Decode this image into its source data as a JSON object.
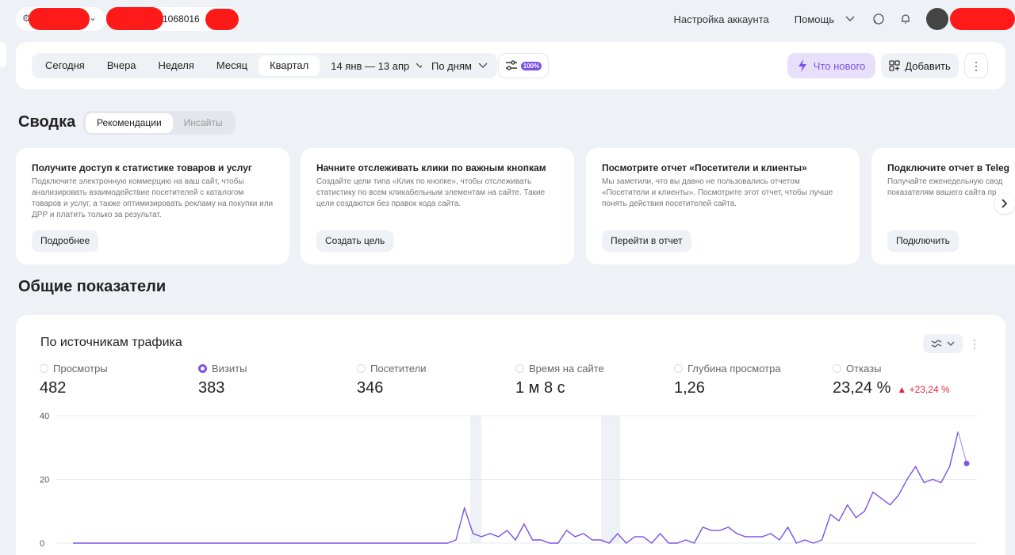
{
  "header": {
    "counter_id": "1068016",
    "account_settings": "Настройка аккаунта",
    "help": "Помощь"
  },
  "filters": {
    "periods": [
      "Сегодня",
      "Вчера",
      "Неделя",
      "Месяц",
      "Квартал"
    ],
    "active_period": "Квартал",
    "date_range": "14 янв — 13 апр",
    "grouping": "По дням",
    "sampling": "100%",
    "whats_new": "Что нового",
    "add": "Добавить"
  },
  "summary": {
    "title": "Сводка",
    "tabs": [
      "Рекомендации",
      "Инсайты"
    ],
    "cards": [
      {
        "title": "Получите доступ к статистике товаров и услуг",
        "text": "Подключите электронную коммерцию на ваш сайт, чтобы анализировать взаимодействие посетителей с каталогом товаров и услуг, а также оптимизировать рекламу на покупки или ДРР и платить только за результат.",
        "button": "Подробнее"
      },
      {
        "title": "Начните отслеживать клики по важным кнопкам",
        "text": "Создайте цели типа «Клик по кнопке», чтобы отслеживать статистику по всем кликабельным элементам на сайте. Такие цели создаются без правок кода сайта.",
        "button": "Создать цель"
      },
      {
        "title": "Посмотрите отчет «Посетители и клиенты»",
        "text": "Мы заметили, что вы давно не пользовались отчетом «Посетители и клиенты». Посмотрите этот отчет, чтобы лучше понять действия посетителей сайта.",
        "button": "Перейти в отчет"
      },
      {
        "title": "Подключите отчет в Teleg",
        "text": "Получайте еженедельную свод показателям вашего сайта пр",
        "button": "Подключить"
      }
    ]
  },
  "metrics": {
    "section_title": "Общие показатели",
    "panel_title": "По источникам трафика",
    "items": [
      {
        "label": "Просмотры",
        "value": "482",
        "selected": false
      },
      {
        "label": "Визиты",
        "value": "383",
        "selected": true
      },
      {
        "label": "Посетители",
        "value": "346",
        "selected": false
      },
      {
        "label": "Время на сайте",
        "value": "1 м 8 с",
        "selected": false
      },
      {
        "label": "Глубина просмотра",
        "value": "1,26",
        "selected": false
      },
      {
        "label": "Отказы",
        "value": "23,24 %",
        "delta": "▲ +23,24 %",
        "selected": false
      }
    ]
  },
  "colors": {
    "accent": "#7b52e6",
    "negative": "#e0263a"
  },
  "chart_data": {
    "type": "line",
    "series": [
      {
        "name": "Визиты",
        "values": [
          0,
          0,
          0,
          0,
          0,
          0,
          0,
          0,
          0,
          0,
          0,
          0,
          0,
          0,
          0,
          0,
          0,
          0,
          0,
          0,
          0,
          0,
          0,
          0,
          0,
          0,
          0,
          0,
          0,
          0,
          0,
          0,
          0,
          0,
          0,
          0,
          0,
          0,
          0,
          0,
          0,
          0,
          0,
          0,
          0,
          1,
          11,
          3,
          2,
          3,
          2,
          4,
          1,
          6,
          1,
          1,
          0,
          0,
          4,
          2,
          3,
          1,
          1,
          0,
          3,
          0,
          2,
          2,
          0,
          3,
          0,
          0,
          1,
          0,
          5,
          4,
          4,
          5,
          3,
          2,
          2,
          2,
          3,
          1,
          5,
          0,
          1,
          0,
          1,
          9,
          7,
          12,
          8,
          10,
          16,
          14,
          12,
          15,
          20,
          24,
          19,
          20,
          19,
          24,
          35,
          25
        ]
      }
    ],
    "ylim": [
      0,
      40
    ],
    "yticks": [
      0,
      20,
      40
    ],
    "grid": true
  }
}
